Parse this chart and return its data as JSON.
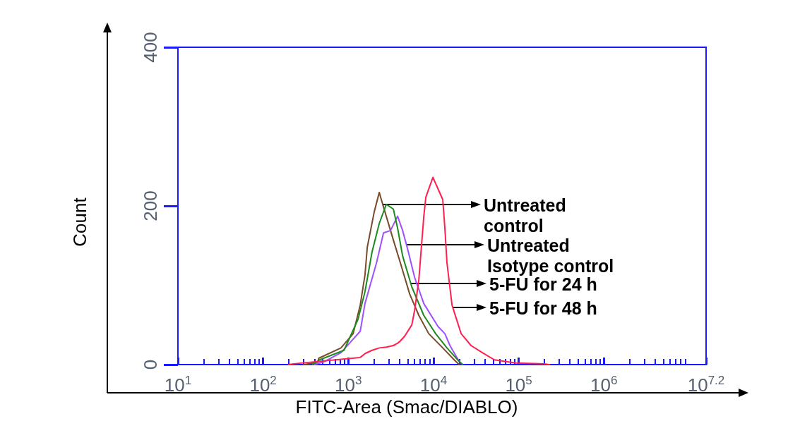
{
  "chart_data": {
    "type": "line",
    "xlabel": "FITC-Area (Smac/DIABLO)",
    "ylabel": "Count",
    "log": "x",
    "xlim": [
      10,
      15848932
    ],
    "xticks": [
      {
        "value": 10,
        "label": "10$^{1}$"
      },
      {
        "value": 100,
        "label": "10$^{2}$"
      },
      {
        "value": 1000,
        "label": "10$^{3}$"
      },
      {
        "value": 10000,
        "label": "10$^{4}$"
      },
      {
        "value": 100000,
        "label": "10$^{5}$"
      },
      {
        "value": 1000000,
        "label": "10$^{6}$"
      },
      {
        "value": 15848932,
        "label": "10$^{7.2}$"
      }
    ],
    "ylim": [
      0,
      400
    ],
    "yticks": [
      0,
      200,
      400
    ],
    "grid": false,
    "legend": false,
    "marker": "none",
    "line_style": "solid",
    "series": [
      {
        "name": "Untreated control",
        "color": "#7a4a2a",
        "x": [
          300,
          440,
          450,
          820,
          1140,
          1380,
          1570,
          1670,
          2020,
          2310,
          2440,
          2790,
          3380,
          4090,
          5250,
          6730,
          8790,
          12850,
          17500,
          20000
        ],
        "values": [
          0,
          3,
          8,
          21,
          39,
          75,
          113,
          148,
          193,
          217,
          208,
          187,
          157,
          128,
          89,
          62,
          39,
          21,
          6,
          0
        ]
      },
      {
        "name": "Untreated Isotype control",
        "color": "#a050ff",
        "x": [
          400,
          530,
          820,
          1380,
          1570,
          2140,
          2590,
          3130,
          3790,
          4340,
          4960,
          6000,
          7690,
          11300,
          13600,
          15600,
          20000,
          22000
        ],
        "values": [
          0,
          4,
          15,
          42,
          77,
          128,
          166,
          169,
          187,
          169,
          146,
          110,
          77,
          48,
          39,
          24,
          4,
          0
        ]
      },
      {
        "name": "5-FU for 24 h",
        "color": "#1e8a1e",
        "x": [
          380,
          460,
          890,
          1300,
          1570,
          1900,
          2310,
          2790,
          3380,
          3790,
          4340,
          5560,
          7690,
          10600,
          14400,
          20000,
          22000
        ],
        "values": [
          0,
          6,
          18,
          57,
          92,
          142,
          178,
          202,
          196,
          172,
          137,
          98,
          62,
          39,
          21,
          4,
          0
        ]
      },
      {
        "name": "5-FU for 48 h",
        "color": "#ff2050",
        "x": [
          200,
          230,
          1380,
          1580,
          1900,
          2310,
          2790,
          3380,
          3800,
          4100,
          4600,
          5200,
          5560,
          6000,
          6730,
          7700,
          8130,
          9840,
          11250,
          12850,
          13600,
          14400,
          16500,
          21100,
          27600,
          37500,
          51900,
          91900,
          197000,
          230000
        ],
        "values": [
          0,
          1,
          9,
          14,
          18,
          21,
          22,
          24,
          27,
          30,
          36,
          45,
          50,
          68,
          107,
          187,
          211,
          236,
          222,
          208,
          172,
          128,
          75,
          39,
          24,
          15,
          6,
          2,
          1,
          0
        ]
      }
    ]
  }
}
